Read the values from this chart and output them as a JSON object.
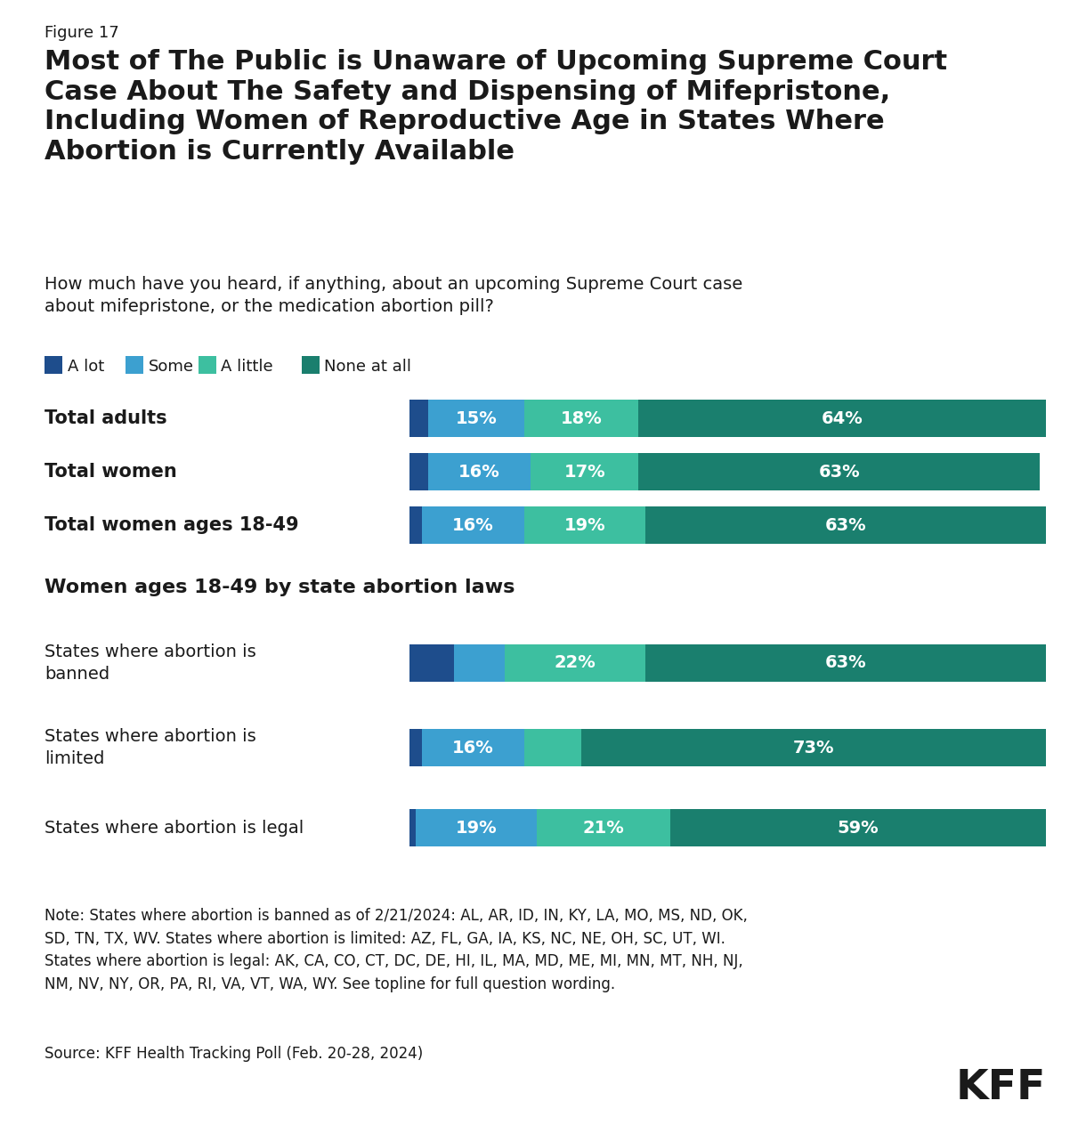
{
  "figure_label": "Figure 17",
  "title": "Most of The Public is Unaware of Upcoming Supreme Court\nCase About The Safety and Dispensing of Mifepristone,\nIncluding Women of Reproductive Age in States Where\nAbortion is Currently Available",
  "subtitle": "How much have you heard, if anything, about an upcoming Supreme Court case\nabout mifepristone, or the medication abortion pill?",
  "legend_labels": [
    "A lot",
    "Some",
    "A little",
    "None at all"
  ],
  "colors": [
    "#1e4d8c",
    "#3ca0d0",
    "#3dbfa0",
    "#1a7f6e"
  ],
  "categories": [
    "Total adults",
    "Total women",
    "Total women ages 18-49"
  ],
  "section2_title": "Women ages 18-49 by state abortion laws",
  "categories2": [
    "States where abortion is\nbanned",
    "States where abortion is\nlimited",
    "States where abortion is legal"
  ],
  "data": [
    [
      3,
      15,
      18,
      64
    ],
    [
      3,
      16,
      17,
      63
    ],
    [
      2,
      16,
      19,
      63
    ]
  ],
  "data2": [
    [
      7,
      8,
      22,
      63
    ],
    [
      2,
      16,
      9,
      73
    ],
    [
      1,
      19,
      21,
      59
    ]
  ],
  "note": "Note: States where abortion is banned as of 2/21/2024: AL, AR, ID, IN, KY, LA, MO, MS, ND, OK,\nSD, TN, TX, WV. States where abortion is limited: AZ, FL, GA, IA, KS, NC, NE, OH, SC, UT, WI.\nStates where abortion is legal: AK, CA, CO, CT, DC, DE, HI, IL, MA, MD, ME, MI, MN, MT, NH, NJ,\nNM, NV, NY, OR, PA, RI, VA, VT, WA, WY. See topline for full question wording.",
  "source": "Source: KFF Health Tracking Poll (Feb. 20-28, 2024)",
  "bg_color": "#ffffff",
  "text_color": "#1a1a1a"
}
